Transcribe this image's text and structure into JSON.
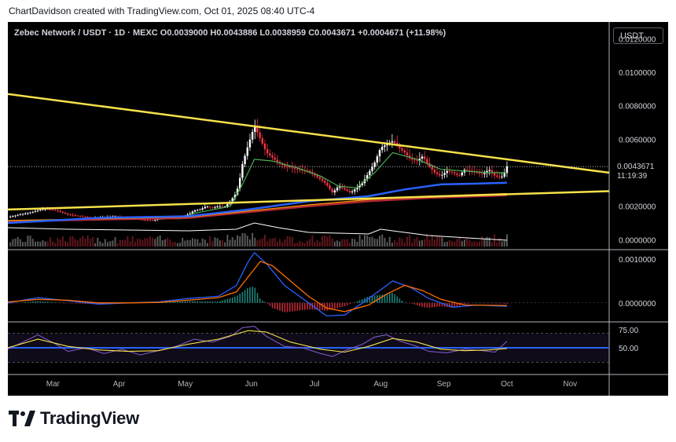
{
  "caption": "ChartDavidson created with TradingView.com, Oct 01, 2025 08:40 UTC-4",
  "legend": "Zebec Network / USDT · 1D · MEXC  O0.0039000  H0.0043886  L0.0038959  C0.0043671  +0.0004671 (+11.98%)",
  "currency_button": "USDT",
  "brand": "TradingView",
  "last_price": "0.0043671",
  "countdown": "11:19:39",
  "colors": {
    "background": "#000000",
    "up": "#ffffff",
    "down": "#f23645",
    "trendline": "#f5e14a",
    "ema_fast": "#4caf50",
    "ema_mid": "#2962ff",
    "ema_slow": "#b22833",
    "ema_orange": "#ff9800",
    "volume_ma": "#ffffff",
    "macd": "#2962ff",
    "signal": "#ff6d00",
    "rsi": "#7e57c2",
    "rsi_ma": "#f5e14a",
    "rsi_band": "#2962ff"
  },
  "chart_data": {
    "type": "candlestick",
    "symbol": "Zebec Network / USDT",
    "interval": "1D",
    "exchange": "MEXC",
    "ohlc_last": {
      "open": 0.0039,
      "high": 0.0043886,
      "low": 0.0038959,
      "close": 0.0043671,
      "change": 0.0004671,
      "change_pct": 11.98
    },
    "y_ticks": [
      "0.0120000",
      "0.0100000",
      "0.0080000",
      "0.0060000",
      "0.0020000",
      "0.0000000"
    ],
    "ylim": [
      -0.0005,
      0.013
    ],
    "x_ticks": [
      "Mar",
      "Apr",
      "May",
      "Jun",
      "Jul",
      "Aug",
      "Sep",
      "Oct",
      "Nov"
    ],
    "price_path": [
      [
        0,
        0.00135
      ],
      [
        0.02,
        0.0015
      ],
      [
        0.04,
        0.00165
      ],
      [
        0.06,
        0.00185
      ],
      [
        0.08,
        0.00175
      ],
      [
        0.1,
        0.0015
      ],
      [
        0.12,
        0.0014
      ],
      [
        0.14,
        0.0013
      ],
      [
        0.16,
        0.00135
      ],
      [
        0.18,
        0.0014
      ],
      [
        0.2,
        0.0013
      ],
      [
        0.22,
        0.0012
      ],
      [
        0.24,
        0.00115
      ],
      [
        0.26,
        0.0013
      ],
      [
        0.28,
        0.00125
      ],
      [
        0.3,
        0.0015
      ],
      [
        0.31,
        0.00175
      ],
      [
        0.32,
        0.0018
      ],
      [
        0.33,
        0.002
      ],
      [
        0.34,
        0.0019
      ],
      [
        0.35,
        0.002
      ],
      [
        0.36,
        0.00195
      ],
      [
        0.37,
        0.0023
      ],
      [
        0.38,
        0.0028
      ],
      [
        0.385,
        0.0035
      ],
      [
        0.39,
        0.0045
      ],
      [
        0.4,
        0.0057
      ],
      [
        0.41,
        0.0068
      ],
      [
        0.42,
        0.006
      ],
      [
        0.43,
        0.0052
      ],
      [
        0.44,
        0.0049
      ],
      [
        0.45,
        0.0046
      ],
      [
        0.46,
        0.0044
      ],
      [
        0.48,
        0.0042
      ],
      [
        0.5,
        0.0041
      ],
      [
        0.52,
        0.0036
      ],
      [
        0.53,
        0.0033
      ],
      [
        0.54,
        0.0028
      ],
      [
        0.55,
        0.0032
      ],
      [
        0.56,
        0.003
      ],
      [
        0.57,
        0.0028
      ],
      [
        0.58,
        0.0031
      ],
      [
        0.59,
        0.0034
      ],
      [
        0.6,
        0.004
      ],
      [
        0.61,
        0.0046
      ],
      [
        0.62,
        0.0055
      ],
      [
        0.63,
        0.0057
      ],
      [
        0.64,
        0.0059
      ],
      [
        0.65,
        0.0055
      ],
      [
        0.66,
        0.0052
      ],
      [
        0.67,
        0.0048
      ],
      [
        0.68,
        0.0047
      ],
      [
        0.69,
        0.005
      ],
      [
        0.7,
        0.0044
      ],
      [
        0.71,
        0.004
      ],
      [
        0.72,
        0.0038
      ],
      [
        0.73,
        0.0041
      ],
      [
        0.74,
        0.004
      ],
      [
        0.75,
        0.0038
      ],
      [
        0.76,
        0.0042
      ],
      [
        0.77,
        0.0041
      ],
      [
        0.78,
        0.004
      ],
      [
        0.79,
        0.0039
      ],
      [
        0.8,
        0.0042
      ],
      [
        0.81,
        0.0038
      ],
      [
        0.82,
        0.0037
      ],
      [
        0.825,
        0.0039
      ],
      [
        0.83,
        0.00437
      ]
    ],
    "ema_fast": [
      [
        0.3,
        0.0015
      ],
      [
        0.37,
        0.002
      ],
      [
        0.39,
        0.0033
      ],
      [
        0.41,
        0.0048
      ],
      [
        0.44,
        0.0047
      ],
      [
        0.48,
        0.0043
      ],
      [
        0.52,
        0.0038
      ],
      [
        0.55,
        0.0032
      ],
      [
        0.58,
        0.0031
      ],
      [
        0.61,
        0.004
      ],
      [
        0.64,
        0.0052
      ],
      [
        0.68,
        0.0048
      ],
      [
        0.72,
        0.0042
      ],
      [
        0.76,
        0.0041
      ],
      [
        0.8,
        0.004
      ],
      [
        0.83,
        0.004
      ]
    ],
    "ema_mid": [
      [
        0.0,
        0.001
      ],
      [
        0.15,
        0.0013
      ],
      [
        0.3,
        0.0014
      ],
      [
        0.4,
        0.0018
      ],
      [
        0.5,
        0.0023
      ],
      [
        0.6,
        0.0026
      ],
      [
        0.66,
        0.003
      ],
      [
        0.72,
        0.0033
      ],
      [
        0.78,
        0.00335
      ],
      [
        0.83,
        0.0034
      ]
    ],
    "ema_slow": [
      [
        0.0,
        0.0011
      ],
      [
        0.15,
        0.0012
      ],
      [
        0.3,
        0.0013
      ],
      [
        0.4,
        0.00165
      ],
      [
        0.5,
        0.002
      ],
      [
        0.6,
        0.0023
      ],
      [
        0.7,
        0.0025
      ],
      [
        0.83,
        0.00265
      ]
    ],
    "trendline_upper": [
      [
        0.0,
        0.0087
      ],
      [
        1.0,
        0.004
      ]
    ],
    "trendline_lower": [
      [
        0.0,
        0.0018
      ],
      [
        1.0,
        0.0029
      ]
    ],
    "macd_ticks": [
      "0.0010000",
      "0.0000000"
    ],
    "macd_range": [
      -0.0004,
      0.0012
    ],
    "macd_path": [
      [
        0.0,
        0.0
      ],
      [
        0.05,
        0.00012
      ],
      [
        0.1,
        5e-05
      ],
      [
        0.15,
        -3e-05
      ],
      [
        0.2,
        0.0
      ],
      [
        0.25,
        2e-05
      ],
      [
        0.3,
        0.0001
      ],
      [
        0.35,
        0.00015
      ],
      [
        0.38,
        0.0004
      ],
      [
        0.4,
        0.00095
      ],
      [
        0.41,
        0.00115
      ],
      [
        0.43,
        0.0009
      ],
      [
        0.46,
        0.0004
      ],
      [
        0.5,
        0.0
      ],
      [
        0.53,
        -0.0003
      ],
      [
        0.56,
        -0.00028
      ],
      [
        0.59,
        0.0
      ],
      [
        0.62,
        0.0003
      ],
      [
        0.64,
        0.0005
      ],
      [
        0.67,
        0.00035
      ],
      [
        0.7,
        0.0001
      ],
      [
        0.74,
        -0.0001
      ],
      [
        0.78,
        -5e-05
      ],
      [
        0.83,
        -8e-05
      ]
    ],
    "signal_path": [
      [
        0.0,
        2e-05
      ],
      [
        0.05,
        8e-05
      ],
      [
        0.1,
        6e-05
      ],
      [
        0.15,
        0.0
      ],
      [
        0.2,
        0.0
      ],
      [
        0.25,
        1e-05
      ],
      [
        0.3,
        6e-05
      ],
      [
        0.35,
        0.00012
      ],
      [
        0.38,
        0.00025
      ],
      [
        0.4,
        0.0006
      ],
      [
        0.42,
        0.00095
      ],
      [
        0.44,
        0.00085
      ],
      [
        0.47,
        0.0005
      ],
      [
        0.5,
        0.00015
      ],
      [
        0.53,
        -0.00012
      ],
      [
        0.56,
        -0.0002
      ],
      [
        0.6,
        -5e-05
      ],
      [
        0.63,
        0.0002
      ],
      [
        0.66,
        0.0004
      ],
      [
        0.69,
        0.00028
      ],
      [
        0.72,
        8e-05
      ],
      [
        0.76,
        -5e-05
      ],
      [
        0.83,
        -6e-05
      ]
    ],
    "rsi_ticks": [
      "75.00",
      "50.00"
    ],
    "rsi_range": [
      15,
      85
    ],
    "rsi_band": [
      30,
      70
    ],
    "rsi_path": [
      [
        0.0,
        48
      ],
      [
        0.03,
        60
      ],
      [
        0.05,
        68
      ],
      [
        0.08,
        55
      ],
      [
        0.1,
        45
      ],
      [
        0.13,
        50
      ],
      [
        0.16,
        42
      ],
      [
        0.19,
        48
      ],
      [
        0.22,
        40
      ],
      [
        0.25,
        46
      ],
      [
        0.28,
        52
      ],
      [
        0.31,
        62
      ],
      [
        0.34,
        58
      ],
      [
        0.37,
        66
      ],
      [
        0.39,
        78
      ],
      [
        0.41,
        80
      ],
      [
        0.43,
        66
      ],
      [
        0.46,
        52
      ],
      [
        0.49,
        50
      ],
      [
        0.52,
        42
      ],
      [
        0.54,
        38
      ],
      [
        0.56,
        46
      ],
      [
        0.59,
        55
      ],
      [
        0.61,
        65
      ],
      [
        0.63,
        68
      ],
      [
        0.65,
        60
      ],
      [
        0.68,
        52
      ],
      [
        0.7,
        45
      ],
      [
        0.73,
        43
      ],
      [
        0.76,
        48
      ],
      [
        0.79,
        46
      ],
      [
        0.81,
        44
      ],
      [
        0.83,
        59
      ]
    ],
    "rsi_ma_path": [
      [
        0.0,
        50
      ],
      [
        0.05,
        62
      ],
      [
        0.1,
        52
      ],
      [
        0.15,
        47
      ],
      [
        0.2,
        45
      ],
      [
        0.25,
        46
      ],
      [
        0.3,
        55
      ],
      [
        0.35,
        62
      ],
      [
        0.4,
        74
      ],
      [
        0.43,
        72
      ],
      [
        0.47,
        58
      ],
      [
        0.52,
        48
      ],
      [
        0.56,
        44
      ],
      [
        0.6,
        52
      ],
      [
        0.64,
        63
      ],
      [
        0.68,
        58
      ],
      [
        0.72,
        48
      ],
      [
        0.76,
        46
      ],
      [
        0.8,
        47
      ],
      [
        0.83,
        49
      ]
    ]
  }
}
